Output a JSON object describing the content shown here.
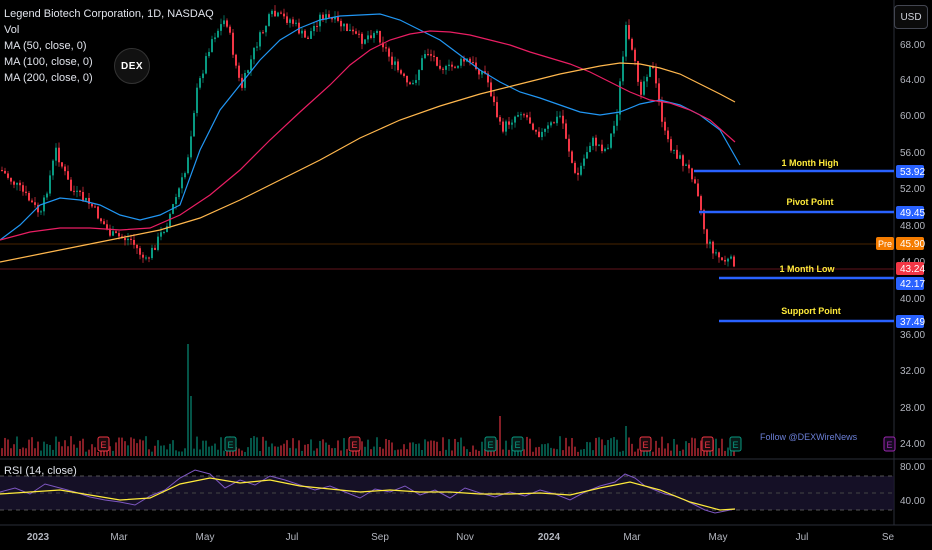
{
  "legend": {
    "title": "Legend Biotech Corporation, 1D, NASDAQ",
    "vol": "Vol",
    "ma50": "MA (50, close, 0)",
    "ma100": "MA (100, close, 0)",
    "ma200": "MA (200, close, 0)"
  },
  "logo": {
    "text": "DEX"
  },
  "currency_button": "USD",
  "price_axis": {
    "ticks": [
      "68.00",
      "64.00",
      "60.00",
      "56.00",
      "52.00",
      "48.00",
      "44.00",
      "40.00",
      "36.00",
      "32.00",
      "28.00",
      "24.00"
    ]
  },
  "price_tags": [
    {
      "text": "53.92",
      "color": "#2962ff"
    },
    {
      "text": "49.45",
      "color": "#2962ff"
    },
    {
      "text": "45.90",
      "color": "#f57c00"
    },
    {
      "text": "43.24",
      "color": "#f23645"
    },
    {
      "text": "42.17",
      "color": "#2962ff"
    },
    {
      "text": "37.49",
      "color": "#2962ff"
    }
  ],
  "pre_label": "Pre",
  "levels": [
    {
      "label": "1 Month High",
      "value": 53.92
    },
    {
      "label": "Pivot Point",
      "value": 49.45
    },
    {
      "label": "1 Month Low",
      "value": 42.17
    },
    {
      "label": "Support Point",
      "value": 37.49
    }
  ],
  "time_axis": [
    "2023",
    "Mar",
    "May",
    "Jul",
    "Sep",
    "Nov",
    "2024",
    "Mar",
    "May",
    "Jul",
    "Se"
  ],
  "earnings_markers": [
    "E",
    "E",
    "E",
    "E",
    "E",
    "E",
    "E",
    "E",
    "E"
  ],
  "follow_text": "Follow @DEXWireNews",
  "rsi": {
    "label": "RSI (14, close)",
    "ticks": [
      "80.00",
      "40.00"
    ]
  },
  "colors": {
    "up": "#089981",
    "down": "#f23645",
    "ma50": "#2196f3",
    "ma100": "#e91e63",
    "ma200": "#ffb74d",
    "level_line": "#2962ff",
    "level_label": "#ffeb3b",
    "rsi_line": "#7e57c2",
    "rsi_ma": "#ffeb3b"
  }
}
